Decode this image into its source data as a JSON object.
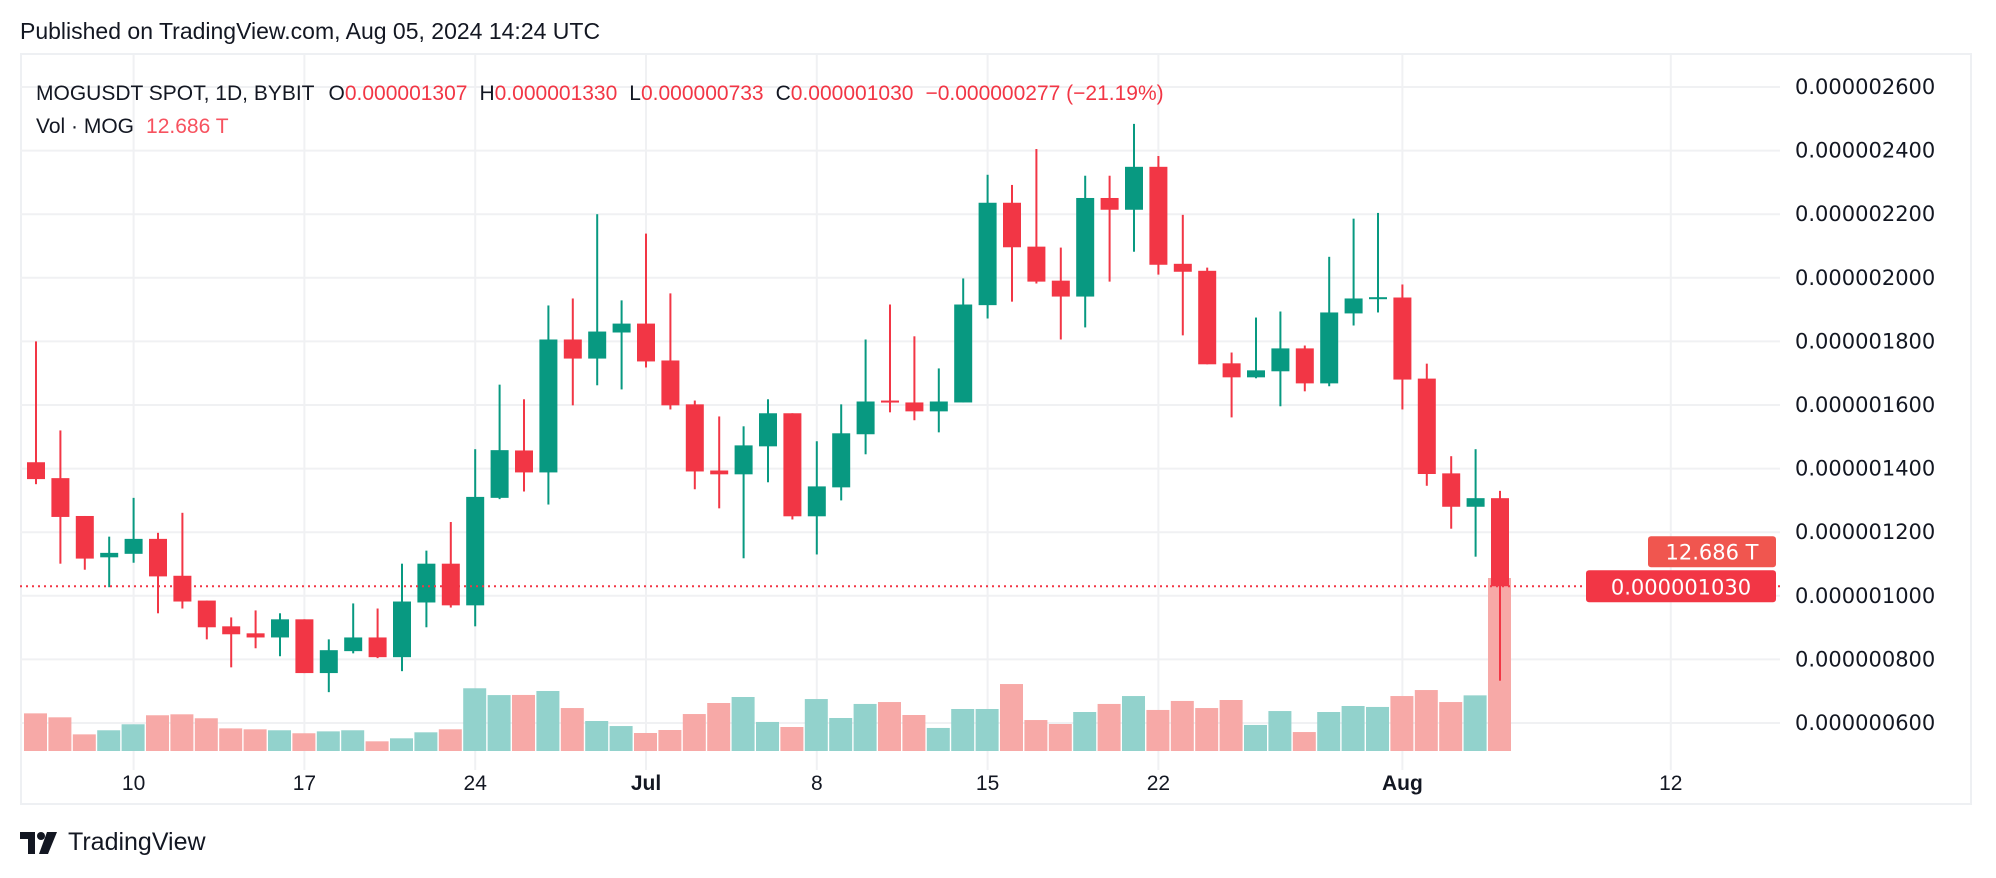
{
  "published": "Published on TradingView.com, Aug 05, 2024 14:24 UTC",
  "legend": {
    "symbol": "MOGUSDT SPOT, 1D, BYBIT",
    "o_label": "O",
    "o_value": "0.000001307",
    "h_label": "H",
    "h_value": "0.000001330",
    "l_label": "L",
    "l_value": "0.000000733",
    "c_label": "C",
    "c_value": "0.000001030",
    "change": "−0.000000277 (−21.19%)",
    "vol_label": "Vol · MOG",
    "vol_value": "12.686 T"
  },
  "footer": {
    "brand": "TradingView"
  },
  "colors": {
    "up": "#089981",
    "down": "#f23645",
    "vol_up": "#92d2cc",
    "vol_down": "#f7a9a7",
    "grid": "#f0f1f3",
    "text": "#131722"
  },
  "chart_data": {
    "type": "candlestick",
    "title": "MOGUSDT SPOT, 1D, BYBIT",
    "price_unit": "1e-9 USDT",
    "ylim": [
      520,
      2700
    ],
    "y_ticks": [
      {
        "value": 2600,
        "label": "0.000002600"
      },
      {
        "value": 2400,
        "label": "0.000002400"
      },
      {
        "value": 2200,
        "label": "0.000002200"
      },
      {
        "value": 2000,
        "label": "0.000002000"
      },
      {
        "value": 1800,
        "label": "0.000001800"
      },
      {
        "value": 1600,
        "label": "0.000001600"
      },
      {
        "value": 1400,
        "label": "0.000001400"
      },
      {
        "value": 1200,
        "label": "0.000001200"
      },
      {
        "value": 1000,
        "label": "0.000001000"
      },
      {
        "value": 800,
        "label": "0.000000800"
      },
      {
        "value": 600,
        "label": "0.000000600"
      }
    ],
    "x_ticks": [
      {
        "index": 4,
        "label": "10",
        "bold": false
      },
      {
        "index": 11,
        "label": "17",
        "bold": false
      },
      {
        "index": 18,
        "label": "24",
        "bold": false
      },
      {
        "index": 25,
        "label": "Jul",
        "bold": true
      },
      {
        "index": 32,
        "label": "8",
        "bold": false
      },
      {
        "index": 39,
        "label": "15",
        "bold": false
      },
      {
        "index": 46,
        "label": "22",
        "bold": false
      },
      {
        "index": 56,
        "label": "Aug",
        "bold": true
      },
      {
        "index": 67,
        "label": "12",
        "bold": false
      }
    ],
    "first_date": "2024-06-06",
    "last_price": {
      "value": 1030,
      "label": "0.000001030"
    },
    "last_volume_label": "12.686 T",
    "volume_unit": "T",
    "candles": [
      [
        1420,
        1800,
        1351,
        1367,
        2.76
      ],
      [
        1370,
        1520,
        1101,
        1248,
        2.47
      ],
      [
        1251,
        1251,
        1082,
        1117,
        1.22
      ],
      [
        1121,
        1186,
        1027,
        1135,
        1.52
      ],
      [
        1132,
        1308,
        1104,
        1179,
        1.96
      ],
      [
        1179,
        1198,
        945,
        1061,
        2.62
      ],
      [
        1063,
        1261,
        960,
        982,
        2.69
      ],
      [
        985,
        985,
        863,
        901,
        2.4
      ],
      [
        904,
        932,
        775,
        879,
        1.66
      ],
      [
        882,
        954,
        835,
        869,
        1.59
      ],
      [
        869,
        945,
        810,
        926,
        1.52
      ],
      [
        926,
        926,
        757,
        757,
        1.3
      ],
      [
        757,
        863,
        697,
        829,
        1.44
      ],
      [
        826,
        976,
        819,
        869,
        1.52
      ],
      [
        869,
        960,
        804,
        807,
        0.71
      ],
      [
        807,
        1101,
        763,
        982,
        0.93
      ],
      [
        979,
        1142,
        901,
        1101,
        1.37
      ],
      [
        1101,
        1232,
        963,
        970,
        1.59
      ],
      [
        970,
        1461,
        904,
        1311,
        4.6
      ],
      [
        1308,
        1664,
        1304,
        1458,
        4.1
      ],
      [
        1457,
        1618,
        1328,
        1388,
        4.11
      ],
      [
        1388,
        1913,
        1287,
        1806,
        4.4
      ],
      [
        1806,
        1935,
        1599,
        1746,
        3.15
      ],
      [
        1746,
        2200,
        1662,
        1831,
        2.2
      ],
      [
        1828,
        1929,
        1649,
        1856,
        1.83
      ],
      [
        1856,
        2139,
        1718,
        1737,
        1.32
      ],
      [
        1740,
        1951,
        1586,
        1599,
        1.54
      ],
      [
        1602,
        1614,
        1335,
        1391,
        2.71
      ],
      [
        1394,
        1564,
        1275,
        1382,
        3.52
      ],
      [
        1382,
        1533,
        1118,
        1473,
        3.96
      ],
      [
        1470,
        1618,
        1357,
        1574,
        2.13
      ],
      [
        1574,
        1574,
        1240,
        1250,
        1.76
      ],
      [
        1250,
        1486,
        1130,
        1344,
        3.81
      ],
      [
        1341,
        1602,
        1300,
        1511,
        2.42
      ],
      [
        1508,
        1806,
        1445,
        1611,
        3.45
      ],
      [
        1614,
        1916,
        1577,
        1608,
        3.59
      ],
      [
        1608,
        1816,
        1552,
        1580,
        2.64
      ],
      [
        1580,
        1715,
        1514,
        1611,
        1.69
      ],
      [
        1608,
        1998,
        1608,
        1916,
        3.08
      ],
      [
        1914,
        2324,
        1872,
        2236,
        3.08
      ],
      [
        2236,
        2292,
        1925,
        2096,
        4.91
      ],
      [
        2098,
        2405,
        1982,
        1988,
        2.27
      ],
      [
        1991,
        2095,
        1806,
        1941,
        1.98
      ],
      [
        1941,
        2321,
        1844,
        2251,
        2.86
      ],
      [
        2251,
        2321,
        1988,
        2214,
        3.45
      ],
      [
        2214,
        2484,
        2082,
        2349,
        4.03
      ],
      [
        2349,
        2383,
        2010,
        2041,
        3.01
      ],
      [
        2044,
        2198,
        1819,
        2019,
        3.67
      ],
      [
        2022,
        2032,
        1728,
        1728,
        3.15
      ],
      [
        1731,
        1765,
        1561,
        1687,
        3.74
      ],
      [
        1687,
        1875,
        1684,
        1709,
        1.91
      ],
      [
        1706,
        1894,
        1596,
        1778,
        2.93
      ],
      [
        1778,
        1787,
        1643,
        1668,
        1.39
      ],
      [
        1668,
        2066,
        1659,
        1891,
        2.86
      ],
      [
        1888,
        2186,
        1850,
        1935,
        3.3
      ],
      [
        1935,
        2204,
        1891,
        1939,
        3.23
      ],
      [
        1938,
        1979,
        1586,
        1680,
        4.03
      ],
      [
        1683,
        1730,
        1346,
        1383,
        4.47
      ],
      [
        1385,
        1439,
        1211,
        1280,
        3.59
      ],
      [
        1280,
        1461,
        1123,
        1307,
        4.08
      ],
      [
        1307,
        1330,
        733,
        1030,
        12.686
      ]
    ],
    "candle_fields": [
      "open",
      "high",
      "low",
      "close",
      "volume"
    ]
  }
}
